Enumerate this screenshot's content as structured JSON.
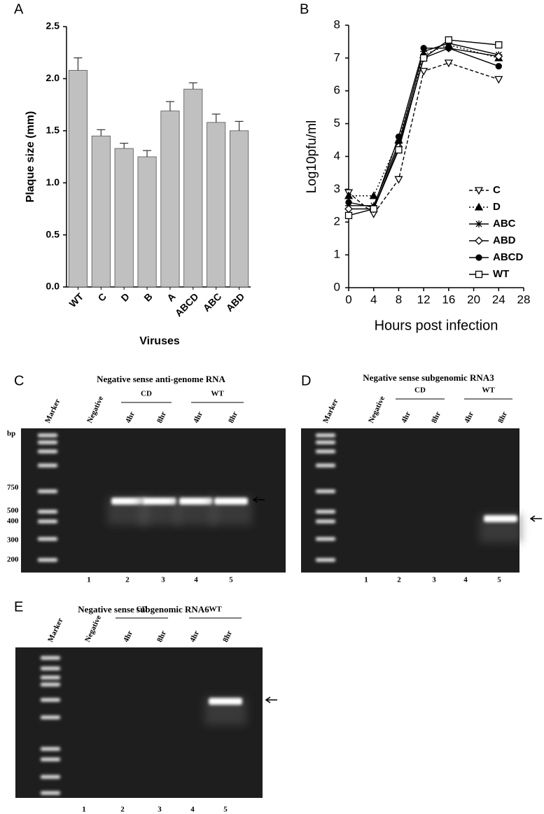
{
  "chart_data": [
    {
      "type": "bar",
      "panel": "A",
      "y_label": "Plaque size (mm)",
      "x_label": "Viruses",
      "categories": [
        "WT",
        "C",
        "D",
        "B",
        "A",
        "ABCD",
        "ABC",
        "ABD"
      ],
      "values": [
        2.08,
        1.45,
        1.33,
        1.25,
        1.69,
        1.9,
        1.58,
        1.5
      ],
      "errors": [
        0.12,
        0.06,
        0.05,
        0.06,
        0.09,
        0.06,
        0.08,
        0.09
      ],
      "color": "#c0c0c0",
      "ylim": [
        0,
        2.5
      ],
      "yticks": [
        {
          "value": 0,
          "label": "0.0"
        },
        0.5,
        {
          "value": 1,
          "label": "1.0"
        },
        1.5,
        {
          "value": 2,
          "label": "2.0"
        },
        2.5
      ]
    },
    {
      "type": "line",
      "panel": "B",
      "y_label": "Log10pfu/ml",
      "x_label": "Hours post infection",
      "x": [
        0,
        4,
        8,
        12,
        16,
        24
      ],
      "xlim": [
        0,
        28
      ],
      "xticks": [
        0,
        4,
        8,
        12,
        16,
        20,
        24,
        28
      ],
      "ylim": [
        0,
        8
      ],
      "yticks": [
        0,
        1,
        2,
        3,
        4,
        5,
        6,
        7,
        8
      ],
      "legend": "lower right",
      "series": [
        {
          "name": "C",
          "color": "#000000",
          "dash": "dashed",
          "marker": "triangle-down-open",
          "values": [
            2.9,
            2.25,
            3.3,
            6.6,
            6.85,
            6.35
          ]
        },
        {
          "name": "D",
          "color": "#000000",
          "dash": "dotted",
          "marker": "triangle-filled",
          "values": [
            2.8,
            2.8,
            4.5,
            7.1,
            7.4,
            7.0
          ]
        },
        {
          "name": "ABC",
          "color": "#000000",
          "dash": "solid",
          "marker": "star",
          "values": [
            2.5,
            2.5,
            4.4,
            7.2,
            7.45,
            7.1
          ]
        },
        {
          "name": "ABD",
          "color": "#000000",
          "dash": "solid",
          "marker": "diamond-open",
          "values": [
            2.4,
            2.4,
            4.3,
            7.0,
            7.3,
            7.05
          ]
        },
        {
          "name": "ABCD",
          "color": "#000000",
          "dash": "solid",
          "marker": "circle-filled",
          "values": [
            2.6,
            2.45,
            4.6,
            7.3,
            7.3,
            6.75
          ]
        },
        {
          "name": "WT",
          "color": "#000000",
          "dash": "solid",
          "marker": "square-open",
          "values": [
            2.2,
            2.4,
            4.2,
            7.0,
            7.55,
            7.4
          ]
        }
      ]
    }
  ],
  "gels": [
    {
      "panel": "C",
      "title": "Negative sense anti-genome RNA",
      "lanes": [
        "Marker",
        "Negative",
        "4hr",
        "8hr",
        "4hr",
        "8hr"
      ],
      "groups": [
        "CD",
        "WT"
      ],
      "lane_numbers": [
        1,
        2,
        3,
        4,
        5
      ],
      "size_unit": "bp",
      "sizes": [
        750,
        500,
        400,
        300,
        200
      ]
    },
    {
      "panel": "D",
      "title": "Negative sense subgenomic RNA3",
      "lanes": [
        "Marker",
        "Negative",
        "4hr",
        "8hr",
        "4hr",
        "8hr"
      ],
      "groups": [
        "CD",
        "WT"
      ],
      "lane_numbers": [
        1,
        2,
        3,
        4,
        5
      ]
    },
    {
      "panel": "E",
      "title": "Negative sense subgenomic RNA6",
      "lanes": [
        "Marker",
        "Negative",
        "4hr",
        "8hr",
        "4hr",
        "8hr"
      ],
      "groups": [
        "CD",
        "WT"
      ],
      "lane_numbers": [
        1,
        2,
        3,
        4,
        5
      ]
    }
  ]
}
